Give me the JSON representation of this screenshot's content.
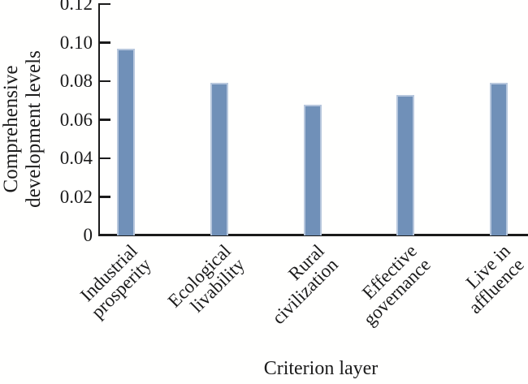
{
  "chart_data": {
    "type": "bar",
    "title": "",
    "categories": [
      "Industrial prosperity",
      "Ecological livability",
      "Rural civilization",
      "Effective governance",
      "Live in affluence"
    ],
    "category_lines": [
      [
        "Industrial",
        "prosperity"
      ],
      [
        "Ecological",
        "livability"
      ],
      [
        "Rural",
        "civilization"
      ],
      [
        "Effective",
        "governance"
      ],
      [
        "Live in",
        "affluence"
      ]
    ],
    "values": [
      0.097,
      0.079,
      0.068,
      0.073,
      0.079
    ],
    "xlabel": "Criterion layer",
    "ylabel": "Comprehensive development levels",
    "ylabel_lines": [
      "Comprehensive",
      "development levels"
    ],
    "ylim": [
      0,
      0.12
    ],
    "yticks": [
      0,
      0.02,
      0.04,
      0.06,
      0.08,
      0.1,
      0.12
    ],
    "ytick_labels": [
      "0",
      "0.02",
      "0.04",
      "0.06",
      "0.08",
      "0.10",
      "0.12"
    ],
    "grid": false,
    "legend_position": "none",
    "bar_color": "#7090b8",
    "bar_border_color": "#b7c7dd",
    "axis_color": "#1b1b1b",
    "text_color": "#1b1b1b",
    "background_color": "#fffffe"
  }
}
